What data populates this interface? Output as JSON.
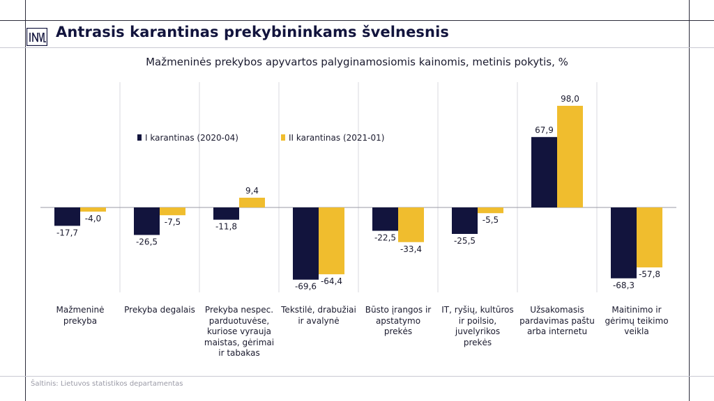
{
  "header": {
    "logo_text": "INVL",
    "title": "Antrasis karantinas prekybininkams švelnesnis"
  },
  "chart_data": {
    "type": "bar",
    "title": "Mažmeninės prekybos apyvartos palyginamosiomis kainomis, metinis pokytis, %",
    "categories": [
      "Mažmeninė prekyba",
      "Prekyba degalais",
      "Prekyba nespec. parduotuvėse, kuriose vyrauja maistas, gėrimai ir tabakas",
      "Tekstilė, drabužiai ir avalynė",
      "Būsto įrangos ir apstatymo prekės",
      "IT, ryšių, kultūros ir poilsio, juvelyrikos prekės",
      "Užsakomasis pardavimas paštu arba internetu",
      "Maitinimo ir gėrimų teikimo veikla"
    ],
    "series": [
      {
        "name": "I karantinas (2020-04)",
        "color": "#12143d",
        "values": [
          -17.7,
          -26.5,
          -11.8,
          -69.6,
          -22.5,
          -25.5,
          67.9,
          -68.3
        ]
      },
      {
        "name": "II karantinas (2021-01)",
        "color": "#f0bd2e",
        "values": [
          -4.0,
          -7.5,
          9.4,
          -64.4,
          -33.4,
          -5.5,
          98.0,
          -57.8
        ]
      }
    ],
    "value_labels": {
      "s0": [
        "-17,7",
        "-26,5",
        "-11,8",
        "-69,6",
        "-22,5",
        "-25,5",
        "67,9",
        "-68,3"
      ],
      "s1": [
        "-4,0",
        "-7,5",
        "9,4",
        "-64,4",
        "-33,4",
        "-5,5",
        "98,0",
        "-57,8"
      ]
    },
    "ylim": [
      -80,
      110
    ],
    "legend": "inside-top-left",
    "grid": false
  },
  "footer": {
    "source": "Šaltinis: Lietuvos statistikos departamentas"
  }
}
